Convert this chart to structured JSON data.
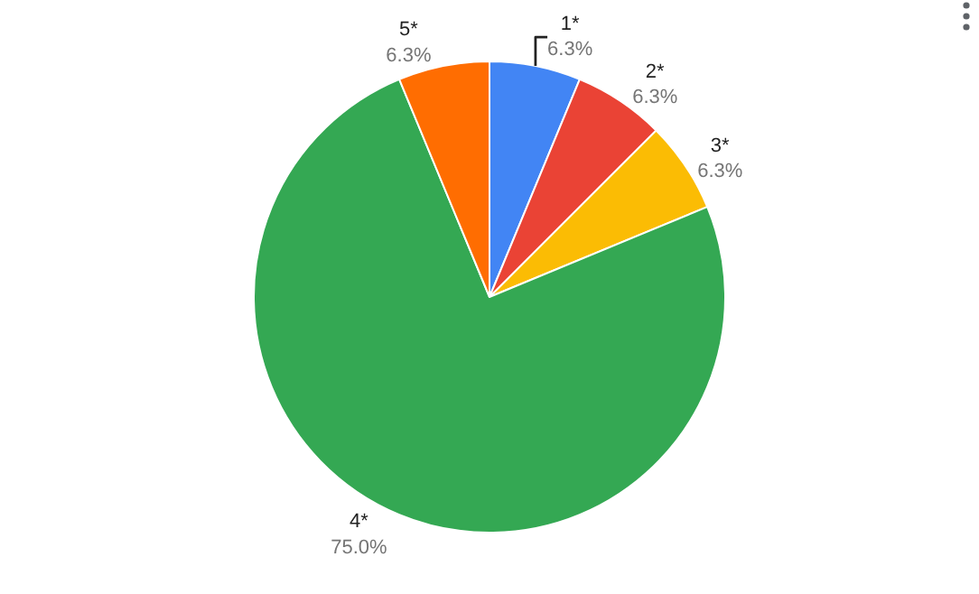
{
  "chart_data": {
    "type": "pie",
    "categories": [
      "1*",
      "2*",
      "3*",
      "4*",
      "5*"
    ],
    "values": [
      6.25,
      6.25,
      6.25,
      75,
      6.25
    ],
    "value_labels": [
      "6.3%",
      "6.3%",
      "6.3%",
      "75.0%",
      "6.3%"
    ],
    "colors": [
      "#4285f4",
      "#ea4335",
      "#fbbc04",
      "#34a853",
      "#ff6d01"
    ],
    "legend": false
  }
}
